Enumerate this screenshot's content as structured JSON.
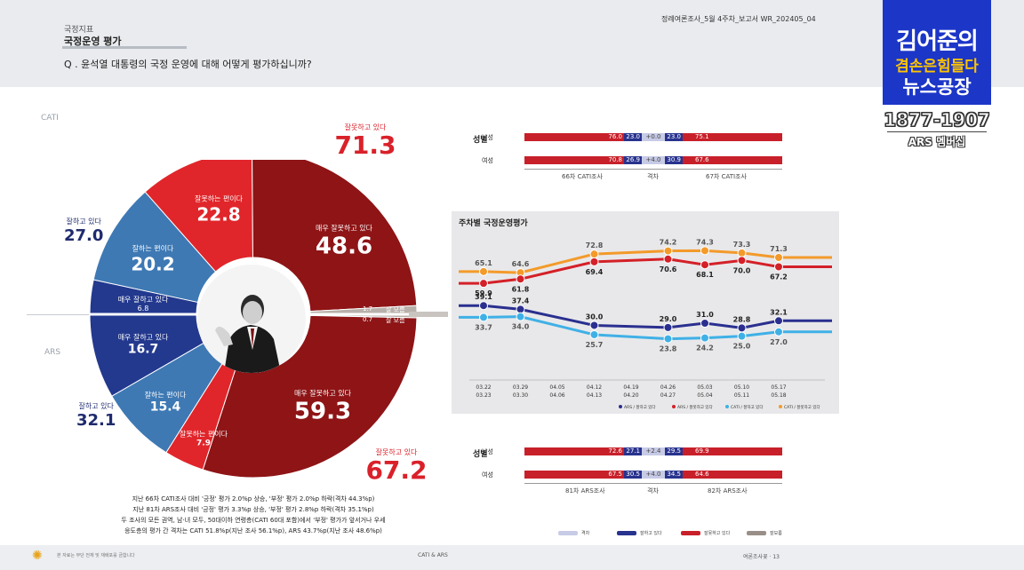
{
  "header": {
    "section_label": "국정지표",
    "section_title": "국정운영 평가",
    "question": "Q . 윤석열 대통령의 국정 운영에 대해 어떻게 평가하십니까?",
    "doc_id": "정례여론조사_5월 4주차_보고서    WR_202405_04"
  },
  "side_labels": {
    "cati": "CATI",
    "ars": "ARS"
  },
  "donut": {
    "cati_positive_total": {
      "label": "잘하고 있다",
      "value": "27.0"
    },
    "cati_negative_total": {
      "label": "잘못하고 있다",
      "value": "71.3"
    },
    "ars_positive_total": {
      "label": "잘하고 있다",
      "value": "32.1"
    },
    "ars_negative_total": {
      "label": "잘못하고 있다",
      "value": "67.2"
    },
    "segments": {
      "cati_wrong_somewhat": {
        "label": "잘못하는 편이다",
        "value": "22.8",
        "color": "#e0262b"
      },
      "cati_wrong_very": {
        "label": "매우 잘못하고 있다",
        "value": "48.6",
        "color": "#8e1416"
      },
      "cati_good_somewhat": {
        "label": "잘하는 편이다",
        "value": "20.2",
        "color": "#3e79b4"
      },
      "cati_good_very": {
        "label": "매우 잘하고 있다",
        "value": "6.8",
        "color": "#23398e"
      },
      "ars_good_very": {
        "label": "매우 잘하고 있다",
        "value": "16.7",
        "color": "#23398e"
      },
      "ars_good_somewhat": {
        "label": "잘하는 편이다",
        "value": "15.4",
        "color": "#3e79b4"
      },
      "ars_wrong_somewhat": {
        "label": "잘못하는 편이다",
        "value": "7.9",
        "color": "#e0262b"
      },
      "ars_wrong_very": {
        "label": "매우 잘못하고 있다",
        "value": "59.3",
        "color": "#8e1416"
      },
      "cati_dk": {
        "label": "잘 모름",
        "value": "1.7",
        "color": "#b8b0aa"
      },
      "ars_dk": {
        "label": "잘 모름",
        "value": "0.7",
        "color": "#b8b0aa"
      }
    }
  },
  "summary_lines": [
    "지난 66차 CATI조사 대비 '긍정' 평가 2.0%p 상승, '부정' 평가 2.0%p 하락(격차 44.3%p)",
    "지난 81차 ARS조사 대비 '긍정' 평가 3.3%p 상승, '부정' 평가 2.8%p 하락(격차 35.1%p)",
    "두 조사의 모든 권역, 남·녀 모두, 50대이하 연령층(CATI 60대 포함)에서 '부정' 평가가 앞서거나 우세",
    "응도층의 평가 간 격차는 CATI 51.8%p(지난 조사 56.1%p), ARS 43.7%p(지난 조사 48.6%p)"
  ],
  "gender_cati": {
    "title": "성별",
    "rows": [
      {
        "label": "남성",
        "left_neg": "76.0",
        "left_pos": "23.0",
        "diff": "+0.0",
        "right_pos": "23.0",
        "right_neg": "75.1"
      },
      {
        "label": "여성",
        "left_neg": "70.8",
        "left_pos": "26.9",
        "diff": "+4.0",
        "right_pos": "30.9",
        "right_neg": "67.6"
      }
    ],
    "cap_left": "66차 CATI조사",
    "cap_mid": "격차",
    "cap_right": "67차 CATI조사"
  },
  "gender_ars": {
    "title": "성별",
    "rows": [
      {
        "label": "남성",
        "left_neg": "72.6",
        "left_pos": "27.1",
        "diff": "+2.4",
        "right_pos": "29.5",
        "right_neg": "69.9"
      },
      {
        "label": "여성",
        "left_neg": "67.5",
        "left_pos": "30.5",
        "diff": "+4.0",
        "right_pos": "34.5",
        "right_neg": "64.6"
      }
    ],
    "cap_left": "81차 ARS조사",
    "cap_mid": "격차",
    "cap_right": "82차 ARS조사"
  },
  "trend": {
    "title": "주차별 국정운영평가"
  },
  "chart_data": {
    "type": "line",
    "title": "주차별 국정운영평가",
    "x": [
      "03.22\n03.23",
      "03.29\n03.30",
      "04.05\n04.06",
      "04.12\n04.13",
      "04.19\n04.20",
      "04.26\n04.27",
      "05.03\n05.04",
      "05.10\n05.11",
      "05.17\n05.18"
    ],
    "series": [
      {
        "name": "CATI / 잘못하고 있다",
        "color": "#f39a2a",
        "values": [
          65.1,
          64.6,
          null,
          72.8,
          null,
          74.2,
          74.3,
          73.3,
          71.3
        ]
      },
      {
        "name": "ARS / 잘못하고 있다",
        "color": "#d42028",
        "values": [
          59.9,
          61.8,
          null,
          69.4,
          null,
          70.6,
          68.1,
          70.0,
          67.2
        ]
      },
      {
        "name": "ARS / 잘하고 있다",
        "color": "#2a2f8f",
        "values": [
          39.1,
          37.4,
          null,
          30.0,
          null,
          29.0,
          31.0,
          28.8,
          32.1
        ]
      },
      {
        "name": "CATI / 잘하고 있다",
        "color": "#3fb0e6",
        "values": [
          33.7,
          34.0,
          null,
          25.7,
          null,
          23.8,
          24.2,
          25.0,
          27.0
        ]
      }
    ],
    "grid": false,
    "legend": "bottom"
  },
  "bottom_legend": [
    "격차",
    "잘하고 있다",
    "잘못하고 있다",
    "잘모름"
  ],
  "footer": {
    "left": "본 자료는 무단 전재 및 재배포를 금합니다",
    "center": "CATI & ARS",
    "right": "여론조사꽃 · 13"
  },
  "logo": {
    "line1": "김어준의",
    "line2": "겸손은힘들다",
    "line3": "뉴스공장",
    "number": "1877-1907",
    "ars": "ARS 멤버십"
  }
}
